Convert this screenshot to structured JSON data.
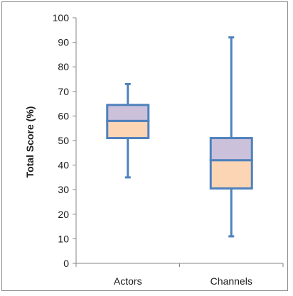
{
  "chart_data": {
    "type": "box",
    "title": "",
    "xlabel": "",
    "ylabel": "Total Score (%)",
    "ylim": [
      0,
      100
    ],
    "yticks": [
      0,
      10,
      20,
      30,
      40,
      50,
      60,
      70,
      80,
      90,
      100
    ],
    "grid": false,
    "legend": "none",
    "categories": [
      "Actors",
      "Channels"
    ],
    "boxes": [
      {
        "category": "Actors",
        "min": 35,
        "q1": 51,
        "median": 58,
        "q3": 64.5,
        "max": 73
      },
      {
        "category": "Channels",
        "min": 11,
        "q1": 30.5,
        "median": 42,
        "q3": 51,
        "max": 92
      }
    ],
    "colors": {
      "lower_box": "#fcd5b5",
      "upper_box": "#ccc1da",
      "outline": "#4f81bd",
      "axis": "#868686"
    }
  }
}
